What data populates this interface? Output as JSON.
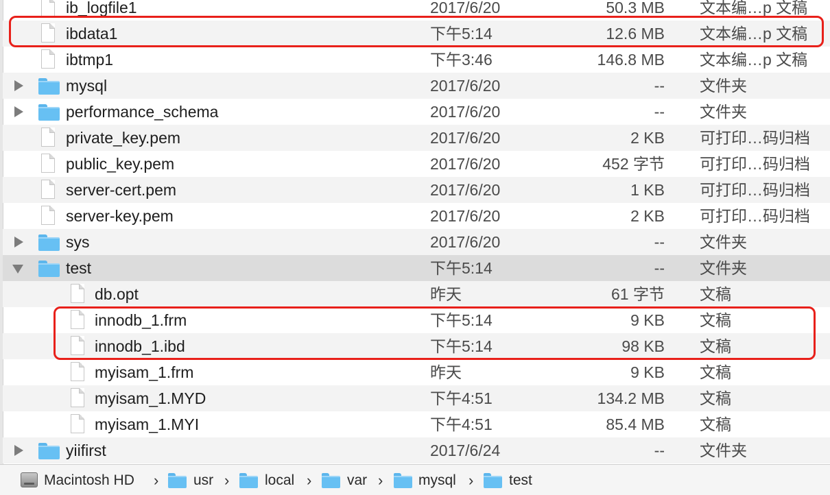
{
  "files": [
    {
      "name": "ib_logfile1",
      "date": "2017/6/20",
      "size": "50.3 MB",
      "kind": "文本编…p 文稿",
      "type": "doc",
      "level": 0
    },
    {
      "name": "ibdata1",
      "date": "下午5:14",
      "size": "12.6 MB",
      "kind": "文本编…p 文稿",
      "type": "doc",
      "level": 0
    },
    {
      "name": "ibtmp1",
      "date": "下午3:46",
      "size": "146.8 MB",
      "kind": "文本编…p 文稿",
      "type": "doc",
      "level": 0
    },
    {
      "name": "mysql",
      "date": "2017/6/20",
      "size": "--",
      "kind": "文件夹",
      "type": "folder",
      "level": 0,
      "expanded": false
    },
    {
      "name": "performance_schema",
      "date": "2017/6/20",
      "size": "--",
      "kind": "文件夹",
      "type": "folder",
      "level": 0,
      "expanded": false
    },
    {
      "name": "private_key.pem",
      "date": "2017/6/20",
      "size": "2 KB",
      "kind": "可打印…码归档",
      "type": "doc",
      "level": 0
    },
    {
      "name": "public_key.pem",
      "date": "2017/6/20",
      "size": "452 字节",
      "kind": "可打印…码归档",
      "type": "doc",
      "level": 0
    },
    {
      "name": "server-cert.pem",
      "date": "2017/6/20",
      "size": "1 KB",
      "kind": "可打印…码归档",
      "type": "doc",
      "level": 0
    },
    {
      "name": "server-key.pem",
      "date": "2017/6/20",
      "size": "2 KB",
      "kind": "可打印…码归档",
      "type": "doc",
      "level": 0
    },
    {
      "name": "sys",
      "date": "2017/6/20",
      "size": "--",
      "kind": "文件夹",
      "type": "folder",
      "level": 0,
      "expanded": false
    },
    {
      "name": "test",
      "date": "下午5:14",
      "size": "--",
      "kind": "文件夹",
      "type": "folder",
      "level": 0,
      "expanded": true
    },
    {
      "name": "db.opt",
      "date": "昨天",
      "size": "61 字节",
      "kind": "文稿",
      "type": "doc",
      "level": 1
    },
    {
      "name": "innodb_1.frm",
      "date": "下午5:14",
      "size": "9 KB",
      "kind": "文稿",
      "type": "doc",
      "level": 1
    },
    {
      "name": "innodb_1.ibd",
      "date": "下午5:14",
      "size": "98 KB",
      "kind": "文稿",
      "type": "doc",
      "level": 1
    },
    {
      "name": "myisam_1.frm",
      "date": "昨天",
      "size": "9 KB",
      "kind": "文稿",
      "type": "doc",
      "level": 1
    },
    {
      "name": "myisam_1.MYD",
      "date": "下午4:51",
      "size": "134.2 MB",
      "kind": "文稿",
      "type": "doc",
      "level": 1
    },
    {
      "name": "myisam_1.MYI",
      "date": "下午4:51",
      "size": "85.4 MB",
      "kind": "文稿",
      "type": "doc",
      "level": 1
    },
    {
      "name": "yiifirst",
      "date": "2017/6/24",
      "size": "--",
      "kind": "文件夹",
      "type": "folder",
      "level": 0,
      "expanded": false
    }
  ],
  "path_bar": {
    "items": [
      {
        "label": "Macintosh HD",
        "icon": "hard-drive-icon"
      },
      {
        "label": "usr",
        "icon": "folder-icon"
      },
      {
        "label": "local",
        "icon": "folder-icon"
      },
      {
        "label": "var",
        "icon": "folder-icon"
      },
      {
        "label": "mysql",
        "icon": "folder-icon"
      },
      {
        "label": "test",
        "icon": "folder-icon"
      }
    ],
    "separator": "›"
  },
  "annotations": {
    "highlight_color": "#e8201a",
    "highlighted_files": [
      "ibdata1",
      "innodb_1.frm",
      "innodb_1.ibd"
    ]
  },
  "colors": {
    "folder": "#67c0f3",
    "alt_row": "#f3f3f3",
    "selected_folder_row": "#dcdcdc"
  }
}
